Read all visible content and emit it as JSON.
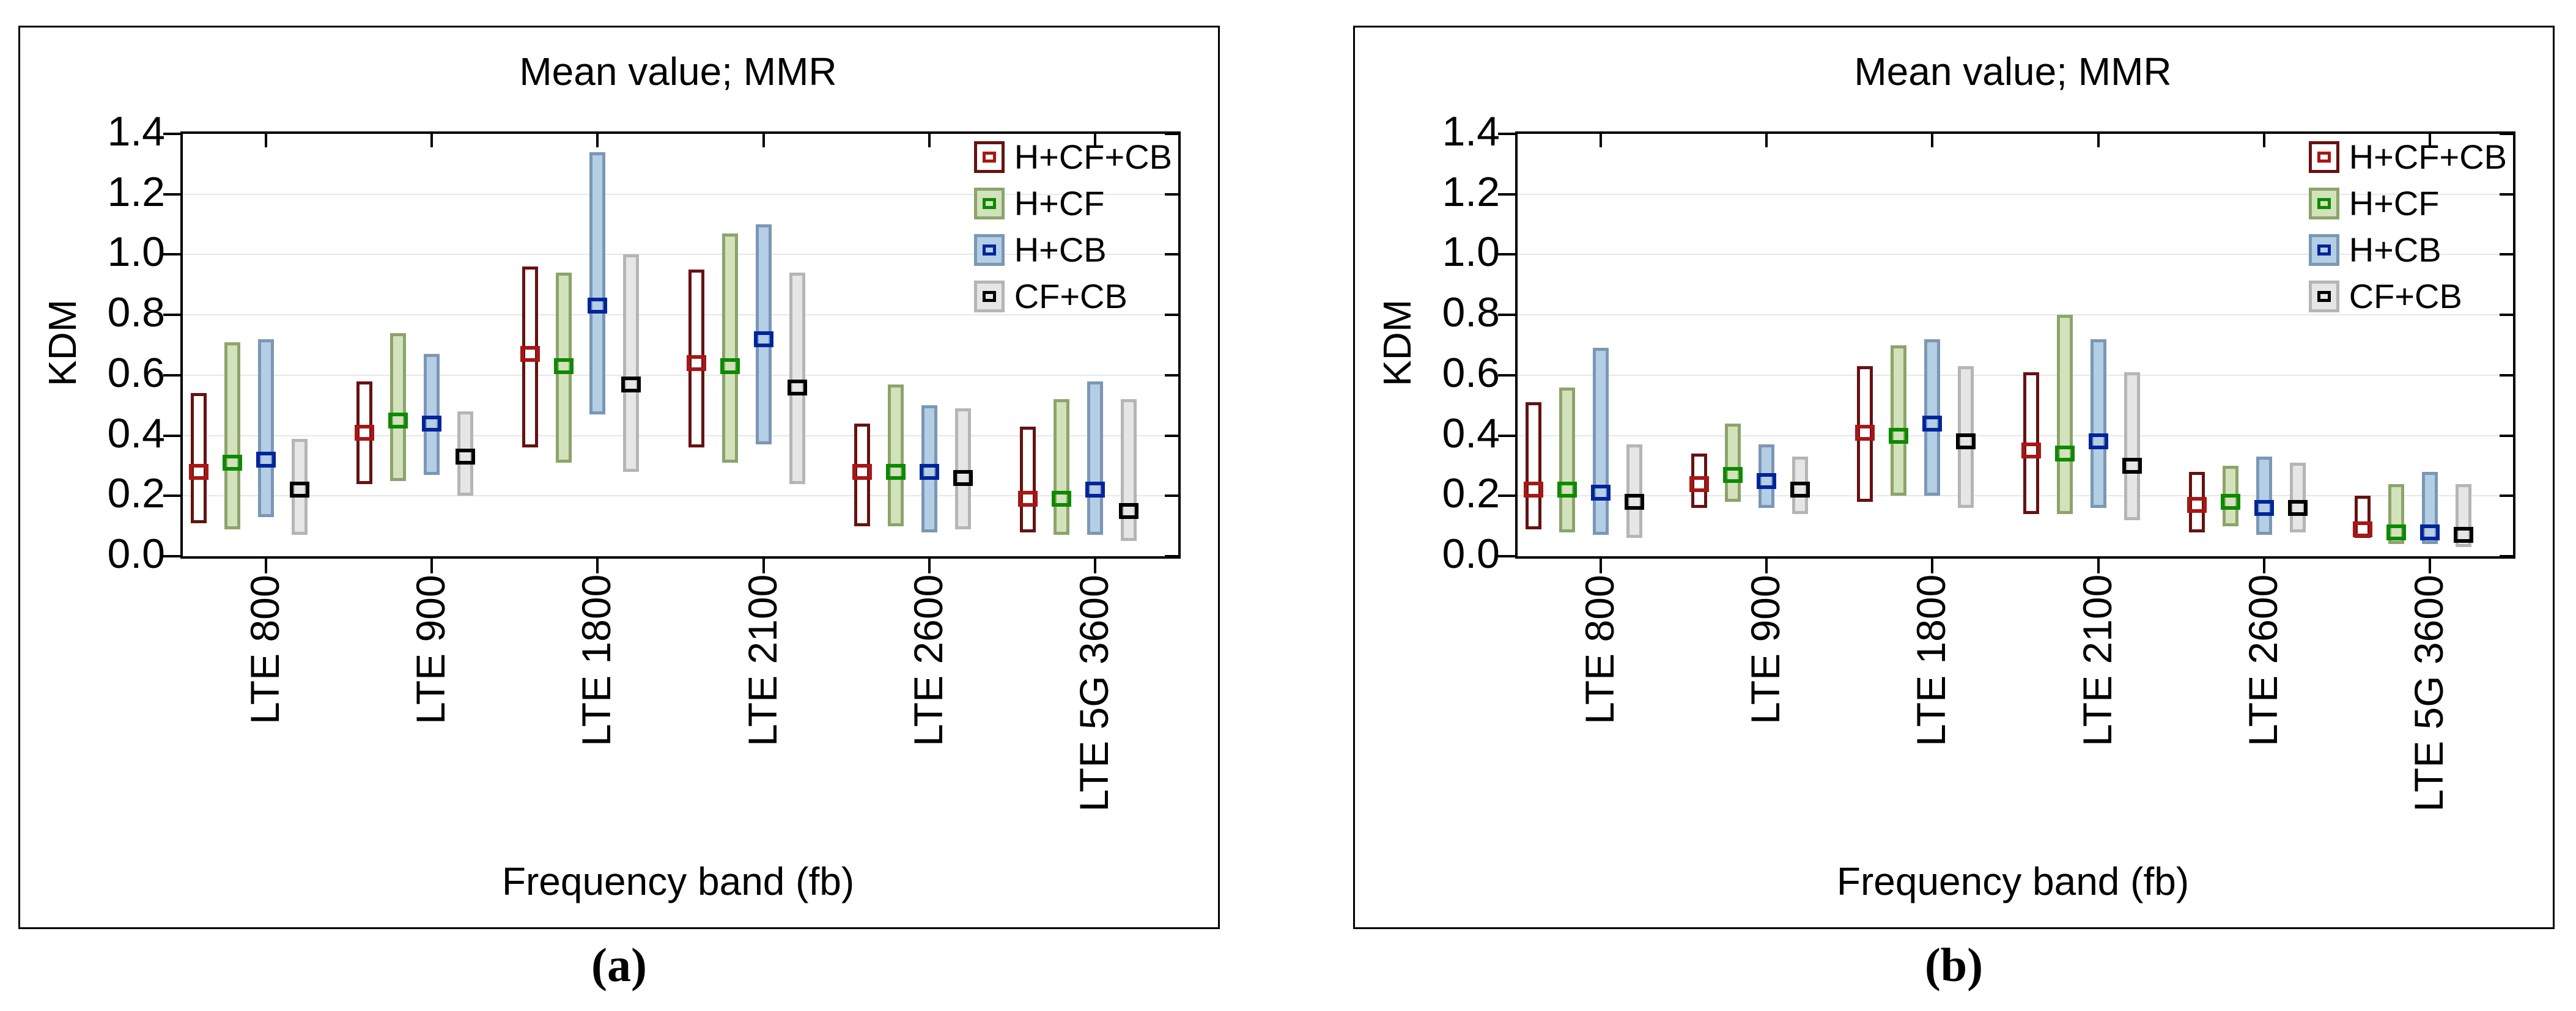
{
  "captions": [
    "(a)",
    "(b)"
  ],
  "chart_data": [
    {
      "panel": "a",
      "type": "bar",
      "subtype": "range-bar-with-mean-marker",
      "title": "Mean value; MMR",
      "xlabel": "Frequency band (fb)",
      "ylabel": "KDM",
      "ylim": [
        0.0,
        1.4
      ],
      "yticks": [
        0.0,
        0.2,
        0.4,
        0.6,
        0.8,
        1.0,
        1.2,
        1.4
      ],
      "ytick_labels": [
        "0.0",
        "0.2",
        "0.4",
        "0.6",
        "0.8",
        "1.0",
        "1.2",
        "1.4"
      ],
      "grid": true,
      "legend_position": "top-right-inside",
      "categories": [
        "LTE 800",
        "LTE 900",
        "LTE 1800",
        "LTE 2100",
        "LTE 2600",
        "LTE 5G 3600"
      ],
      "series": [
        {
          "name": "H+CF+CB",
          "bar_border": "#661212",
          "bar_fill": "#ffffff",
          "marker": "#a81616",
          "ranges": [
            [
              0.11,
              0.54
            ],
            [
              0.24,
              0.58
            ],
            [
              0.36,
              0.96
            ],
            [
              0.36,
              0.95
            ],
            [
              0.1,
              0.44
            ],
            [
              0.08,
              0.43
            ]
          ],
          "means": [
            0.28,
            0.41,
            0.67,
            0.64,
            0.28,
            0.19
          ]
        },
        {
          "name": "H+CF",
          "bar_border": "#8ca46c",
          "bar_fill": "#d2e2ba",
          "marker": "#0c8a00",
          "ranges": [
            [
              0.09,
              0.71
            ],
            [
              0.25,
              0.74
            ],
            [
              0.31,
              0.94
            ],
            [
              0.31,
              1.07
            ],
            [
              0.1,
              0.57
            ],
            [
              0.07,
              0.52
            ]
          ],
          "means": [
            0.31,
            0.45,
            0.63,
            0.63,
            0.28,
            0.19
          ]
        },
        {
          "name": "H+CB",
          "bar_border": "#7b97b4",
          "bar_fill": "#b4cee6",
          "marker": "#00249b",
          "ranges": [
            [
              0.13,
              0.72
            ],
            [
              0.27,
              0.67
            ],
            [
              0.47,
              1.34
            ],
            [
              0.37,
              1.1
            ],
            [
              0.08,
              0.5
            ],
            [
              0.07,
              0.58
            ]
          ],
          "means": [
            0.32,
            0.44,
            0.83,
            0.72,
            0.28,
            0.22
          ]
        },
        {
          "name": "CF+CB",
          "bar_border": "#b5b5b5",
          "bar_fill": "#e6e6e6",
          "marker": "#000000",
          "ranges": [
            [
              0.07,
              0.39
            ],
            [
              0.2,
              0.48
            ],
            [
              0.28,
              1.0
            ],
            [
              0.24,
              0.94
            ],
            [
              0.09,
              0.49
            ],
            [
              0.05,
              0.52
            ]
          ],
          "means": [
            0.22,
            0.33,
            0.57,
            0.56,
            0.26,
            0.15
          ]
        }
      ]
    },
    {
      "panel": "b",
      "type": "bar",
      "subtype": "range-bar-with-mean-marker",
      "title": "Mean value; MMR",
      "xlabel": "Frequency band (fb)",
      "ylabel": "KDM",
      "ylim": [
        0.0,
        1.4
      ],
      "yticks": [
        0.0,
        0.2,
        0.4,
        0.6,
        0.8,
        1.0,
        1.2,
        1.4
      ],
      "ytick_labels": [
        "0.0",
        "0.2",
        "0.4",
        "0.6",
        "0.8",
        "1.0",
        "1.2",
        "1.4"
      ],
      "grid": true,
      "legend_position": "top-right-inside",
      "categories": [
        "LTE 800",
        "LTE 900",
        "LTE 1800",
        "LTE 2100",
        "LTE 2600",
        "LTE 5G 3600"
      ],
      "series": [
        {
          "name": "H+CF+CB",
          "bar_border": "#661212",
          "bar_fill": "#ffffff",
          "marker": "#a81616",
          "ranges": [
            [
              0.09,
              0.51
            ],
            [
              0.16,
              0.34
            ],
            [
              0.18,
              0.63
            ],
            [
              0.14,
              0.61
            ],
            [
              0.08,
              0.28
            ],
            [
              0.06,
              0.2
            ]
          ],
          "means": [
            0.22,
            0.24,
            0.41,
            0.35,
            0.17,
            0.09
          ]
        },
        {
          "name": "H+CF",
          "bar_border": "#8ca46c",
          "bar_fill": "#d2e2ba",
          "marker": "#0c8a00",
          "ranges": [
            [
              0.08,
              0.56
            ],
            [
              0.18,
              0.44
            ],
            [
              0.2,
              0.7
            ],
            [
              0.14,
              0.8
            ],
            [
              0.1,
              0.3
            ],
            [
              0.04,
              0.24
            ]
          ],
          "means": [
            0.22,
            0.27,
            0.4,
            0.34,
            0.18,
            0.08
          ]
        },
        {
          "name": "H+CB",
          "bar_border": "#7b97b4",
          "bar_fill": "#b4cee6",
          "marker": "#00249b",
          "ranges": [
            [
              0.07,
              0.69
            ],
            [
              0.16,
              0.37
            ],
            [
              0.2,
              0.72
            ],
            [
              0.16,
              0.72
            ],
            [
              0.07,
              0.33
            ],
            [
              0.04,
              0.28
            ]
          ],
          "means": [
            0.21,
            0.25,
            0.44,
            0.38,
            0.16,
            0.08
          ]
        },
        {
          "name": "CF+CB",
          "bar_border": "#b5b5b5",
          "bar_fill": "#e6e6e6",
          "marker": "#000000",
          "ranges": [
            [
              0.06,
              0.37
            ],
            [
              0.14,
              0.33
            ],
            [
              0.16,
              0.63
            ],
            [
              0.12,
              0.61
            ],
            [
              0.08,
              0.31
            ],
            [
              0.03,
              0.24
            ]
          ],
          "means": [
            0.18,
            0.22,
            0.38,
            0.3,
            0.16,
            0.07
          ]
        }
      ]
    }
  ]
}
